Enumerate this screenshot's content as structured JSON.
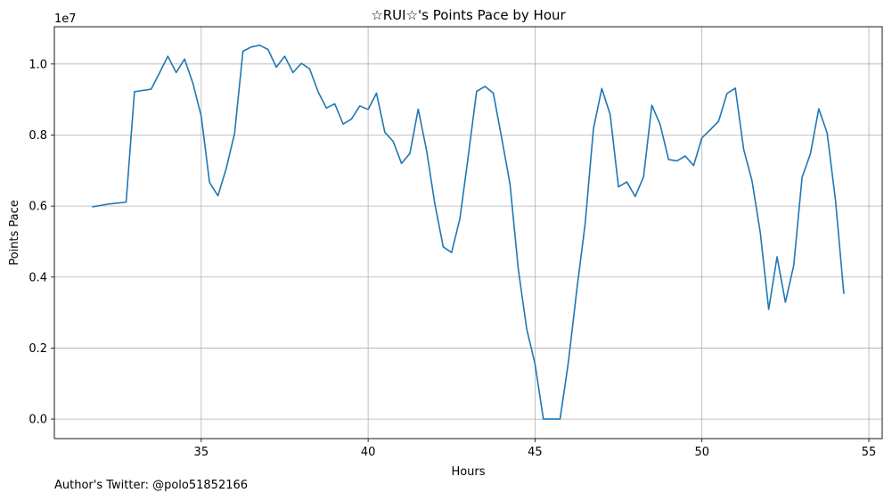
{
  "chart_data": {
    "type": "line",
    "title": "☆RUI☆'s Points Pace by Hour",
    "xlabel": "Hours",
    "ylabel": "Points Pace",
    "y_offset_label": "1e7",
    "xlim": [
      30.6,
      55.4
    ],
    "ylim": [
      -0.055,
      1.105
    ],
    "x_ticks": [
      35,
      40,
      45,
      50,
      55
    ],
    "x_tick_labels": [
      "35",
      "40",
      "45",
      "50",
      "55"
    ],
    "y_ticks": [
      0.0,
      0.2,
      0.4,
      0.6,
      0.8,
      1.0
    ],
    "y_tick_labels": [
      "0.0",
      "0.2",
      "0.4",
      "0.6",
      "0.8",
      "1.0"
    ],
    "grid": true,
    "series": [
      {
        "color": "#1f77b4",
        "points": [
          [
            31.75,
            0.598
          ],
          [
            32.25,
            0.606
          ],
          [
            32.75,
            0.611
          ],
          [
            33.0,
            0.922
          ],
          [
            33.5,
            0.929
          ],
          [
            33.75,
            0.975
          ],
          [
            34.0,
            1.022
          ],
          [
            34.25,
            0.976
          ],
          [
            34.5,
            1.014
          ],
          [
            34.75,
            0.946
          ],
          [
            35.0,
            0.853
          ],
          [
            35.25,
            0.666
          ],
          [
            35.5,
            0.629
          ],
          [
            35.75,
            0.706
          ],
          [
            36.0,
            0.805
          ],
          [
            36.25,
            1.036
          ],
          [
            36.5,
            1.048
          ],
          [
            36.75,
            1.053
          ],
          [
            37.0,
            1.041
          ],
          [
            37.25,
            0.991
          ],
          [
            37.5,
            1.022
          ],
          [
            37.75,
            0.976
          ],
          [
            38.0,
            1.002
          ],
          [
            38.25,
            0.986
          ],
          [
            38.5,
            0.922
          ],
          [
            38.75,
            0.876
          ],
          [
            39.0,
            0.888
          ],
          [
            39.25,
            0.831
          ],
          [
            39.5,
            0.845
          ],
          [
            39.75,
            0.882
          ],
          [
            40.0,
            0.872
          ],
          [
            40.25,
            0.918
          ],
          [
            40.5,
            0.808
          ],
          [
            40.75,
            0.782
          ],
          [
            41.0,
            0.72
          ],
          [
            41.25,
            0.748
          ],
          [
            41.5,
            0.873
          ],
          [
            41.75,
            0.757
          ],
          [
            42.0,
            0.605
          ],
          [
            42.25,
            0.485
          ],
          [
            42.5,
            0.469
          ],
          [
            42.75,
            0.565
          ],
          [
            43.0,
            0.741
          ],
          [
            43.25,
            0.923
          ],
          [
            43.5,
            0.937
          ],
          [
            43.75,
            0.918
          ],
          [
            44.0,
            0.792
          ],
          [
            44.25,
            0.662
          ],
          [
            44.5,
            0.421
          ],
          [
            44.75,
            0.254
          ],
          [
            45.0,
            0.155
          ],
          [
            45.25,
            0.0
          ],
          [
            45.5,
            0.0
          ],
          [
            45.75,
            0.0
          ],
          [
            46.0,
            0.161
          ],
          [
            46.25,
            0.363
          ],
          [
            46.5,
            0.549
          ],
          [
            46.75,
            0.818
          ],
          [
            47.0,
            0.931
          ],
          [
            47.25,
            0.858
          ],
          [
            47.5,
            0.654
          ],
          [
            47.75,
            0.668
          ],
          [
            48.0,
            0.627
          ],
          [
            48.25,
            0.682
          ],
          [
            48.5,
            0.884
          ],
          [
            48.75,
            0.829
          ],
          [
            49.0,
            0.731
          ],
          [
            49.25,
            0.727
          ],
          [
            49.5,
            0.741
          ],
          [
            49.75,
            0.714
          ],
          [
            50.0,
            0.792
          ],
          [
            50.25,
            0.815
          ],
          [
            50.5,
            0.839
          ],
          [
            50.75,
            0.917
          ],
          [
            51.0,
            0.932
          ],
          [
            51.25,
            0.76
          ],
          [
            51.5,
            0.671
          ],
          [
            51.75,
            0.524
          ],
          [
            52.0,
            0.309
          ],
          [
            52.25,
            0.457
          ],
          [
            52.5,
            0.329
          ],
          [
            52.75,
            0.433
          ],
          [
            53.0,
            0.681
          ],
          [
            53.25,
            0.747
          ],
          [
            53.5,
            0.874
          ],
          [
            53.75,
            0.806
          ],
          [
            54.0,
            0.617
          ],
          [
            54.25,
            0.354
          ]
        ]
      }
    ]
  },
  "footer": {
    "text": "Author's Twitter: @polo51852166"
  }
}
